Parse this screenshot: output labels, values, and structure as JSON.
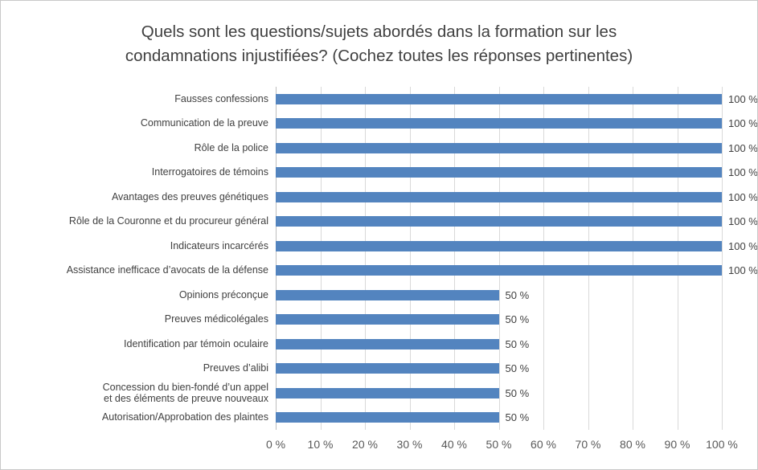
{
  "colors": {
    "bar": "#5384BF",
    "grid": "#D9D9D9",
    "axis_line": "#BFBFBF",
    "title_text": "#404040",
    "label_text": "#404040",
    "tick_text": "#595959",
    "border": "#C9C9C9"
  },
  "chart_data": {
    "type": "bar",
    "orientation": "horizontal",
    "title": "Quels sont les questions/sujets abordés dans la formation sur les\ncondamnations injustifiées? (Cochez toutes les réponses pertinentes)",
    "categories": [
      "Fausses confessions",
      "Communication de la preuve",
      "Rôle de la police",
      "Interrogatoires de témoins",
      "Avantages des preuves génétiques",
      "Rôle de la Couronne et du procureur général",
      "Indicateurs incarcérés",
      "Assistance inefficace d’avocats de la défense",
      "Opinions préconçue",
      "Preuves médicolégales",
      "Identification par témoin oculaire",
      "Preuves d’alibi",
      "Concession du bien-fondé d’un appel\net des éléments de preuve nouveaux",
      "Autorisation/Approbation des plaintes"
    ],
    "values": [
      100,
      100,
      100,
      100,
      100,
      100,
      100,
      100,
      50,
      50,
      50,
      50,
      50,
      50
    ],
    "value_suffix": " %",
    "data_labels": true,
    "xlabel": "",
    "ylabel": "",
    "xlim": [
      0,
      100
    ],
    "x_ticks": [
      "0 %",
      "10 %",
      "20 %",
      "30 %",
      "40 %",
      "50 %",
      "60 %",
      "70 %",
      "80 %",
      "90 %",
      "100 %"
    ],
    "grid": "vertical",
    "legend": "none"
  }
}
